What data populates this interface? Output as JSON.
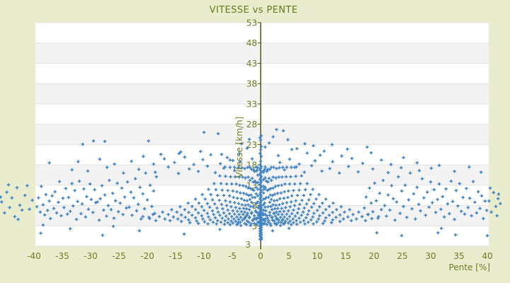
{
  "title": "VITESSE vs PENTE",
  "chart_data": {
    "type": "scatter",
    "title": "VITESSE vs PENTE",
    "xlabel": "Pente [%]",
    "ylabel": "Vitesse [km/h]",
    "xlim": [
      -39.75,
      40.25
    ],
    "ylim": [
      -2,
      53
    ],
    "xticks": [
      -40,
      -35,
      -30,
      -25,
      -20,
      -15,
      -10,
      -5,
      0,
      5,
      10,
      15,
      20,
      25,
      30,
      35,
      40
    ],
    "yticks": [
      53,
      48,
      43,
      38,
      33,
      28,
      23,
      18,
      13,
      8,
      3
    ],
    "y_axis_bottom_label": "3",
    "legend": "none",
    "grid": "horizontal-bands-every-5",
    "marker": "plus",
    "colors": {
      "page_bg": "#e9edce",
      "plot_bg": "#ffffff",
      "band": "#f3f3f3",
      "grid": "#e2e2e2",
      "axis": "#4e5a10",
      "text": "#6e7b22",
      "marker": "#3e82c4"
    },
    "points_format": "flat pairs [pente, vitesse]",
    "points": [
      0,
      0.4,
      0.1,
      0.8,
      -0.1,
      1.2,
      0,
      1.6,
      0.1,
      2,
      -0.1,
      2.4,
      0,
      2.8,
      0.1,
      3.2,
      -0.1,
      3.6,
      0,
      4,
      0.1,
      4.4,
      -0.1,
      4.8,
      0,
      5.2,
      0.1,
      5.6,
      -0.1,
      6,
      0,
      6.4,
      0.1,
      6.8,
      -0.1,
      7.2,
      0,
      7.6,
      0.1,
      8,
      -0.1,
      8.4,
      0,
      8.8,
      0.1,
      9.2,
      -0.1,
      9.6,
      0,
      10,
      0.1,
      10.4,
      -0.1,
      10.8,
      0,
      11.2,
      0.1,
      11.6,
      -0.1,
      12,
      0,
      12.4,
      0.1,
      12.8,
      -0.1,
      13.2,
      0,
      13.6,
      0.1,
      14,
      -0.1,
      14.4,
      0,
      14.8,
      0.1,
      15.2,
      -0.1,
      15.6,
      0,
      16,
      0.1,
      16.4,
      -0.1,
      16.8,
      0,
      17.2,
      0.1,
      17.6,
      -0.1,
      18,
      0.1,
      0.2,
      -0.1,
      0.6,
      0,
      1,
      0.1,
      1.4,
      -0.1,
      1.8,
      0,
      2.2,
      0.1,
      2.6,
      -0.1,
      3,
      0,
      3.4,
      0.1,
      3.8,
      -0.1,
      4.2,
      0,
      4.6,
      0.1,
      5,
      -0.1,
      5.4,
      0,
      5.8,
      0.1,
      6.2,
      -0.1,
      6.6,
      0,
      7,
      0.1,
      7.4,
      -0.1,
      7.8,
      0,
      -0.4,
      0.1,
      -0.3,
      -0.1,
      -0.3,
      0,
      -0.2,
      0.1,
      -0.1,
      0,
      18.9,
      0.1,
      20.1,
      -0.1,
      20.8,
      0,
      21.7,
      0.1,
      22.5,
      0,
      24.1,
      -0.1,
      24.7,
      0.1,
      25.2,
      0.5,
      3.5,
      0.5,
      4.6,
      0.5,
      5.7,
      0.5,
      6.9,
      0.5,
      8.2,
      0.5,
      9.6,
      0.5,
      11.1,
      0.5,
      12.7,
      0.5,
      14.4,
      0.5,
      16.2,
      -0.5,
      3.9,
      -0.5,
      5,
      -0.5,
      6.2,
      -0.5,
      7.5,
      -0.5,
      8.9,
      -0.5,
      10.4,
      -0.5,
      12,
      -0.5,
      13.7,
      -0.5,
      15.5,
      -0.5,
      17.3,
      0.8,
      4.2,
      0.8,
      5.8,
      0.8,
      7.6,
      0.8,
      9.7,
      0.8,
      12.1,
      0.8,
      14.8,
      0.8,
      17,
      -0.8,
      4.6,
      -0.8,
      6.4,
      -0.8,
      8.5,
      -0.8,
      10.9,
      -0.8,
      13.6,
      -0.8,
      16.5,
      0.8,
      17.5,
      1,
      14,
      1.2,
      11.7,
      1.4,
      10,
      1.6,
      8.8,
      1.8,
      7.8,
      2,
      7,
      2.3,
      6.1,
      2.6,
      5.4,
      2.9,
      4.8,
      3.2,
      4.4,
      3.6,
      3.9,
      4,
      3.5,
      1.1,
      16.4,
      1.3,
      13.8,
      1.5,
      12,
      1.7,
      10.6,
      1.9,
      9.5,
      2.2,
      8.2,
      2.5,
      7.2,
      2.8,
      6.4,
      3.1,
      5.8,
      3.5,
      5.1,
      3.9,
      4.6,
      4.4,
      4.1,
      4.9,
      3.7,
      5.4,
      3.3,
      1.3,
      16.9,
      1.5,
      14.7,
      1.8,
      12.2,
      2.1,
      10.5,
      2.4,
      9.2,
      2.7,
      8.1,
      3,
      7.3,
      3.4,
      6.5,
      3.8,
      5.8,
      4.2,
      5.2,
      4.7,
      4.7,
      5.2,
      4.2,
      5.8,
      3.8,
      6.4,
      3.4,
      1.6,
      16.9,
      1.9,
      14.2,
      2.2,
      12.3,
      2.5,
      10.8,
      2.9,
      9.3,
      3.3,
      8.2,
      3.7,
      7.3,
      4.1,
      6.6,
      4.6,
      5.9,
      5.1,
      5.3,
      5.7,
      4.7,
      6.3,
      4.3,
      7,
      3.9,
      7.8,
      3.5,
      1.9,
      17.4,
      2.2,
      15,
      2.6,
      12.7,
      3,
      11,
      3.4,
      9.7,
      3.9,
      8.5,
      4.4,
      7.5,
      4.9,
      6.7,
      5.5,
      6,
      6.1,
      5.4,
      6.8,
      4.9,
      7.6,
      4.3,
      8.4,
      3.9,
      9.3,
      3.5,
      2.3,
      17.4,
      2.7,
      14.8,
      3.1,
      12.9,
      3.6,
      11.1,
      4.1,
      9.8,
      4.6,
      8.7,
      5.2,
      7.7,
      5.8,
      6.9,
      6.5,
      6.2,
      7.2,
      5.6,
      8,
      5,
      8.9,
      4.5,
      9.9,
      4,
      11,
      3.6,
      2.8,
      17.1,
      3.2,
      15,
      3.7,
      13,
      4.2,
      11.4,
      4.8,
      10,
      5.4,
      8.9,
      6,
      8,
      6.7,
      7.2,
      7.5,
      6.4,
      8.3,
      5.8,
      9.2,
      5.2,
      10.2,
      4.7,
      11.3,
      4.2,
      12.5,
      3.8,
      3.3,
      17.3,
      3.8,
      15,
      4.3,
      13.3,
      4.9,
      11.6,
      5.5,
      10.4,
      6.2,
      9.2,
      6.9,
      8.3,
      7.7,
      7.4,
      8.5,
      6.7,
      9.4,
      6.1,
      10.4,
      5.5,
      11.5,
      5,
      12.7,
      4.5,
      14,
      4.1,
      3.9,
      17.4,
      4.5,
      15.1,
      5.1,
      13.3,
      5.8,
      11.7,
      6.5,
      10.5,
      7.3,
      9.3,
      8.1,
      8.4,
      9,
      7.6,
      10,
      6.8,
      11,
      6.2,
      12.1,
      5.6,
      13.3,
      5.1,
      14.6,
      4.7,
      16,
      4.3,
      4.6,
      17.4,
      5.3,
      15.1,
      6,
      13.3,
      6.8,
      11.8,
      7.6,
      10.5,
      8.5,
      9.4,
      9.4,
      8.5,
      10.4,
      7.7,
      11.5,
      7,
      12.7,
      6.3,
      14,
      5.7,
      15.4,
      5.2,
      16.9,
      4.7,
      18.5,
      4.3,
      5.4,
      17.4,
      6.2,
      15.2,
      7,
      13.4,
      7.9,
      11.9,
      8.8,
      10.7,
      9.8,
      9.6,
      10.9,
      8.6,
      12.1,
      7.8,
      13.4,
      7,
      14.8,
      6.4,
      16.3,
      5.8,
      17.9,
      5.3,
      19.6,
      4.8,
      6.3,
      17.5,
      7.2,
      15.3,
      8.2,
      13.4,
      9.2,
      12,
      10.3,
      10.7,
      11.5,
      9.6,
      12.8,
      8.6,
      14.2,
      7.7,
      15.7,
      7,
      17.3,
      6.4,
      19,
      5.8,
      20.8,
      5.3,
      0.5,
      12,
      0.7,
      8.6,
      0.9,
      6.7,
      1.1,
      5.5,
      1.4,
      4.3,
      1.7,
      3.5,
      0.6,
      16.7,
      0.8,
      12.5,
      1,
      10,
      1.3,
      7.7,
      1.6,
      6.3,
      2,
      5,
      2.4,
      4.2,
      2.8,
      3.6,
      -0.8,
      17.5,
      -1,
      14,
      -1.2,
      11.7,
      -1.4,
      10,
      -1.6,
      8.8,
      -1.8,
      7.8,
      -2,
      7,
      -2.3,
      6.1,
      -2.6,
      5.4,
      -2.9,
      4.8,
      -3.2,
      4.4,
      -3.6,
      3.9,
      -4,
      3.5,
      -1.1,
      16.4,
      -1.3,
      13.8,
      -1.5,
      12,
      -1.7,
      10.6,
      -1.9,
      9.5,
      -2.2,
      8.2,
      -2.5,
      7.2,
      -2.8,
      6.4,
      -3.1,
      5.8,
      -3.5,
      5.1,
      -3.9,
      4.6,
      -4.4,
      4.1,
      -4.9,
      3.7,
      -5.4,
      3.3,
      -1.3,
      16.9,
      -1.5,
      14.7,
      -1.8,
      12.2,
      -2.1,
      10.5,
      -2.4,
      9.2,
      -2.7,
      8.1,
      -3,
      7.3,
      -3.4,
      6.5,
      -3.8,
      5.8,
      -4.2,
      5.2,
      -4.7,
      4.7,
      -5.2,
      4.2,
      -5.8,
      3.8,
      -6.4,
      3.4,
      -1.6,
      16.9,
      -1.9,
      14.2,
      -2.2,
      12.3,
      -2.5,
      10.8,
      -2.9,
      9.3,
      -3.3,
      8.2,
      -3.7,
      7.3,
      -4.1,
      6.6,
      -4.6,
      5.9,
      -5.1,
      5.3,
      -5.7,
      4.7,
      -6.3,
      4.3,
      -7,
      3.9,
      -7.8,
      3.5,
      -1.9,
      17.4,
      -2.2,
      15,
      -2.6,
      12.7,
      -3,
      11,
      -3.4,
      9.7,
      -3.9,
      8.5,
      -4.4,
      7.5,
      -4.9,
      6.7,
      -5.5,
      6,
      -6.1,
      5.4,
      -6.8,
      4.9,
      -7.6,
      4.3,
      -8.4,
      3.9,
      -9.3,
      3.5,
      -2.3,
      17.4,
      -2.7,
      14.8,
      -3.1,
      12.9,
      -3.6,
      11.1,
      -4.1,
      9.8,
      -4.6,
      8.7,
      -5.2,
      7.7,
      -5.8,
      6.9,
      -6.5,
      6.2,
      -7.2,
      5.6,
      -8,
      5,
      -8.9,
      4.5,
      -9.9,
      4,
      -11,
      3.6,
      -2.8,
      17.1,
      -3.2,
      15,
      -3.7,
      13,
      -4.2,
      11.4,
      -4.8,
      10,
      -5.4,
      8.9,
      -6,
      8,
      -6.7,
      7.2,
      -7.5,
      6.4,
      -8.3,
      5.8,
      -9.2,
      5.2,
      -10.2,
      4.7,
      -11.3,
      4.2,
      -12.5,
      3.8,
      -3.3,
      17.3,
      -3.8,
      15,
      -4.3,
      13.3,
      -4.9,
      11.6,
      -5.5,
      10.4,
      -6.2,
      9.2,
      -6.9,
      8.3,
      -7.7,
      7.4,
      -8.5,
      6.7,
      -9.4,
      6.1,
      -10.4,
      5.5,
      -11.5,
      5,
      -12.7,
      4.5,
      -14,
      4.1,
      -3.9,
      17.4,
      -4.5,
      15.1,
      -5.1,
      13.3,
      -5.8,
      11.7,
      -6.5,
      10.5,
      -7.3,
      9.3,
      -8.1,
      8.4,
      -9,
      7.6,
      -10,
      6.8,
      -11,
      6.2,
      -12.1,
      5.6,
      -13.3,
      5.1,
      -14.6,
      4.7,
      -16,
      4.3,
      -4.6,
      17.4,
      -5.3,
      15.1,
      -6,
      13.3,
      -6.8,
      11.8,
      -7.6,
      10.5,
      -8.5,
      9.4,
      -9.4,
      8.5,
      -10.4,
      7.7,
      -11.5,
      7,
      -12.7,
      6.3,
      -14,
      5.7,
      -15.4,
      5.2,
      -16.9,
      4.7,
      -18.5,
      4.3,
      -5.4,
      17.4,
      -6.2,
      15.2,
      -7,
      13.4,
      -7.9,
      11.9,
      -8.8,
      10.7,
      -9.8,
      9.6,
      -10.9,
      8.6,
      -12.1,
      7.8,
      -13.4,
      7,
      -14.8,
      6.4,
      -16.3,
      5.8,
      -17.9,
      5.3,
      -19.6,
      4.8,
      -6.3,
      17.5,
      -7.2,
      15.3,
      -8.2,
      13.4,
      -9.2,
      12,
      -10.3,
      10.7,
      -11.5,
      9.6,
      -12.8,
      8.6,
      -14.2,
      7.7,
      -15.7,
      7,
      -17.3,
      6.4,
      -19,
      5.8,
      -20.8,
      5.3,
      -0.5,
      12,
      -0.7,
      8.6,
      -0.9,
      6.7,
      -1.1,
      5.5,
      -1.4,
      4.3,
      -1.7,
      3.5,
      -0.6,
      16.7,
      -0.8,
      12.5,
      -1,
      10,
      -1.3,
      7.7,
      -1.6,
      6.3,
      -2,
      5,
      -2.4,
      4.2,
      -2.8,
      3.6,
      -4.2,
      3.3,
      -3.9,
      3.9,
      -3.5,
      3.1,
      -3.2,
      4.4,
      -2.8,
      3.6,
      -2.5,
      3.3,
      -2.1,
      3.9,
      -1.8,
      3.1,
      -1.4,
      4.4,
      -1.1,
      3.6,
      -0.7,
      3.3,
      -0.4,
      3.9,
      0,
      3.1,
      0.4,
      4.4,
      0.7,
      3.6,
      1.1,
      3.3,
      1.4,
      3.9,
      1.8,
      3.1,
      2.1,
      4.4,
      2.5,
      3.6,
      2.8,
      3.3,
      3.2,
      3.9,
      3.5,
      3.1,
      3.9,
      4.4,
      4.2,
      3.6,
      -2.8,
      4.9,
      -2.4,
      5.6,
      -2,
      5.2,
      -1.6,
      6.1,
      -1.2,
      4.7,
      -0.8,
      4.9,
      -0.4,
      5.6,
      0,
      5.2,
      0.4,
      6.1,
      0.8,
      4.7,
      1.2,
      4.9,
      1.6,
      5.6,
      2,
      5.2,
      2.4,
      6.1,
      2.8,
      4.7,
      18.3,
      7.4,
      18.6,
      10.1,
      18.9,
      5.8,
      19.2,
      12.3,
      19.5,
      8.6,
      19.8,
      6.5,
      20.1,
      13.5,
      20.4,
      9.2,
      20.7,
      4.9,
      21,
      11,
      21.3,
      7,
      21.6,
      14.2,
      21.9,
      8,
      22.2,
      5.4,
      22.5,
      10.6,
      22.8,
      6.9,
      23.1,
      12.9,
      23.4,
      9.7,
      23.7,
      4.4,
      24,
      8.9,
      24.3,
      15.1,
      24.6,
      6.1,
      24.9,
      11.6,
      25.2,
      7.8,
      25.5,
      13,
      25.8,
      5.1,
      26.1,
      9.4,
      26.4,
      16,
      26.7,
      7.2,
      27,
      10.9,
      27.3,
      4.7,
      27.6,
      12.5,
      27.9,
      8.3,
      28.2,
      6.7,
      28.5,
      14.6,
      28.8,
      9.9,
      29.1,
      5.6,
      29.4,
      11.3,
      29.7,
      7.6,
      30,
      13.8,
      30.3,
      8.7,
      30.6,
      11.9,
      30.9,
      6.3,
      31.2,
      9.5,
      31.5,
      13.3,
      31.8,
      7.1,
      32.1,
      10.2,
      32.4,
      5.2,
      32.7,
      12.1,
      33,
      8.4,
      33.3,
      6,
      33.6,
      14,
      33.9,
      9,
      34.2,
      4.6,
      34.5,
      11.7,
      34.8,
      7.9,
      35.1,
      13.4,
      35.4,
      6.6,
      35.7,
      10,
      36,
      5.9,
      36.3,
      12.2,
      36.6,
      7.5,
      36.9,
      9.8,
      37.2,
      5.5,
      37.5,
      13.9,
      37.8,
      8.8,
      38.1,
      6.2,
      38.4,
      11.4,
      38.7,
      7.3,
      39,
      10.4,
      39.3,
      4.8,
      39.6,
      9.1,
      39.9,
      6.8,
      -18.4,
      15.1,
      -18.7,
      6.1,
      -18.9,
      11.6,
      -19.2,
      7.8,
      -19.5,
      13,
      -19.7,
      5.1,
      -20,
      9.4,
      -20.3,
      16,
      -20.5,
      7.2,
      -20.8,
      10.9,
      -21.1,
      4.7,
      -21.3,
      12.5,
      -21.6,
      8.3,
      -21.9,
      6.7,
      -22.1,
      14.6,
      -22.4,
      9.9,
      -22.7,
      5.6,
      -22.9,
      11.3,
      -23.2,
      7.6,
      -23.5,
      13.8,
      -23.7,
      7.4,
      -24,
      10.1,
      -24.3,
      5.8,
      -24.5,
      12.3,
      -24.8,
      8.6,
      -25.1,
      6.5,
      -25.3,
      13.5,
      -25.6,
      9.2,
      -25.9,
      4.9,
      -26.1,
      11,
      -26.4,
      7,
      -26.7,
      14.2,
      -26.9,
      8,
      -27.2,
      5.4,
      -27.5,
      10.6,
      -27.7,
      6.9,
      -28,
      12.9,
      -28.3,
      9.7,
      -28.5,
      4.4,
      -28.8,
      8.9,
      -29.1,
      8.7,
      -29.3,
      11.9,
      -29.6,
      6.3,
      -29.9,
      9.5,
      -30.1,
      13.3,
      -30.4,
      7.1,
      -30.7,
      10.2,
      -30.9,
      5.2,
      -31.2,
      12.1,
      -31.5,
      8.4,
      -31.7,
      6,
      -32,
      14,
      -32.3,
      9,
      -32.5,
      4.6,
      -32.8,
      11.7,
      -33.1,
      7.9,
      -33.3,
      13.4,
      -33.6,
      6.6,
      -33.9,
      10,
      -34.1,
      5.9,
      -34.4,
      12.2,
      -34.7,
      7.5,
      -34.9,
      9.8,
      -35.2,
      5.5,
      -35.5,
      13.9,
      -35.7,
      8.8,
      -36,
      6.2,
      -36.3,
      11.4,
      -36.5,
      7.3,
      -36.8,
      10.4,
      -37.1,
      4.8,
      -37.3,
      9.1,
      -37.6,
      6.8,
      -37.9,
      10.7,
      -38.1,
      5.7,
      -38.4,
      8.2,
      -38.7,
      12.7,
      -38.9,
      6.4,
      -39.2,
      9.9,
      -39.5,
      7.7,
      3.4,
      18.6,
      5.1,
      19.4,
      6.8,
      18.2,
      8.2,
      20.9,
      9.6,
      19,
      11.2,
      21.4,
      12.7,
      18.8,
      14.3,
      20.2,
      16.1,
      19.6,
      18,
      18.4,
      19.5,
      21,
      21.3,
      19.2,
      23,
      18.1,
      25.2,
      19.8,
      27.6,
      18.5,
      30.1,
      17.2,
      4.2,
      16.8,
      6,
      17.4,
      7.7,
      16.2,
      9,
      17.8,
      10.8,
      16.5,
      12.2,
      17.1,
      13.9,
      16,
      15.5,
      17.6,
      17.2,
      16.3,
      19.8,
      17,
      22.5,
      16.1,
      24.8,
      17.3,
      28,
      16.6,
      31.5,
      17.9,
      34.2,
      16.4,
      36.8,
      17.5,
      38.9,
      16.2,
      -3.6,
      18.8,
      -5.4,
      19.2,
      -7.1,
      18.3,
      -8.8,
      20.5,
      -10.2,
      19.3,
      -11.8,
      18.1,
      -13.4,
      19.9,
      -15.2,
      18.6,
      -17,
      19.5,
      -18.9,
      18.2,
      -20.7,
      20.1,
      -22.8,
      18.9,
      -25.8,
      18.2,
      -28.4,
      19.4,
      -32.2,
      18.8,
      -37.3,
      18.5,
      -4.6,
      16.6,
      -6.5,
      17.2,
      -8,
      16.1,
      -9.4,
      17.7,
      -11,
      16.4,
      -12.6,
      17,
      -14.5,
      15.9,
      -16.3,
      17.5,
      -18.6,
      16.2,
      -21.5,
      16.9,
      -24.2,
      16,
      -27.1,
      17.4,
      -30.5,
      16.5,
      -33.3,
      16.8,
      -31.4,
      23.1,
      -29.5,
      23.9,
      -27.5,
      23.8,
      -19.8,
      23.9,
      -17.6,
      20.6,
      -14.4,
      20.8,
      -14.1,
      21.2,
      -10.6,
      21.3,
      -10,
      26,
      -7.5,
      25.7,
      -6.9,
      20.6,
      -5.9,
      19.8,
      -4.9,
      19.1,
      -3.8,
      20.8,
      -3.4,
      23.2,
      -2.4,
      22.1,
      -1.5,
      19.5,
      -2,
      24.3,
      2.8,
      26.7,
      4,
      26.4,
      0.8,
      22.4,
      7.8,
      23.2,
      9.3,
      22.7,
      12.6,
      23,
      5.5,
      21.8,
      3.1,
      20.3,
      6.4,
      22,
      10.5,
      20.4,
      15.3,
      21.9,
      18.8,
      22.4,
      2.2,
      24.9,
      1.5,
      23.4,
      4.8,
      24.2,
      5,
      2.4,
      20.5,
      1.3,
      24.9,
      0.6,
      31.3,
      1.3,
      31.9,
      2.4,
      34.4,
      0.8,
      40,
      0.6,
      2.1,
      1.8,
      -7.2,
      2.1,
      -13.5,
      1,
      -21.4,
      1.8,
      -27.9,
      0.7,
      -33.6,
      2.3,
      -38.8,
      1.2,
      -26,
      2.9,
      -38.4,
      3.2,
      -45.7,
      8.9,
      -45.2,
      6.2,
      -44.8,
      11.3,
      -44.3,
      7.5,
      -43.9,
      9.9,
      -43.4,
      5.3,
      -43,
      12.4,
      -42.5,
      8.1,
      -42.1,
      6.9,
      -41.6,
      10.5,
      -41.2,
      12.9,
      -40.8,
      7.1,
      -40.3,
      9.3,
      -44.5,
      13.1,
      -42.8,
      4.6,
      -45.9,
      10.1,
      40.3,
      9.1,
      40.7,
      6.4,
      41.1,
      11.2,
      41.5,
      7.8,
      41.9,
      9.7,
      42.3,
      8.5,
      40.5,
      12.3,
      41.7,
      5.5,
      42,
      10.8
    ]
  }
}
